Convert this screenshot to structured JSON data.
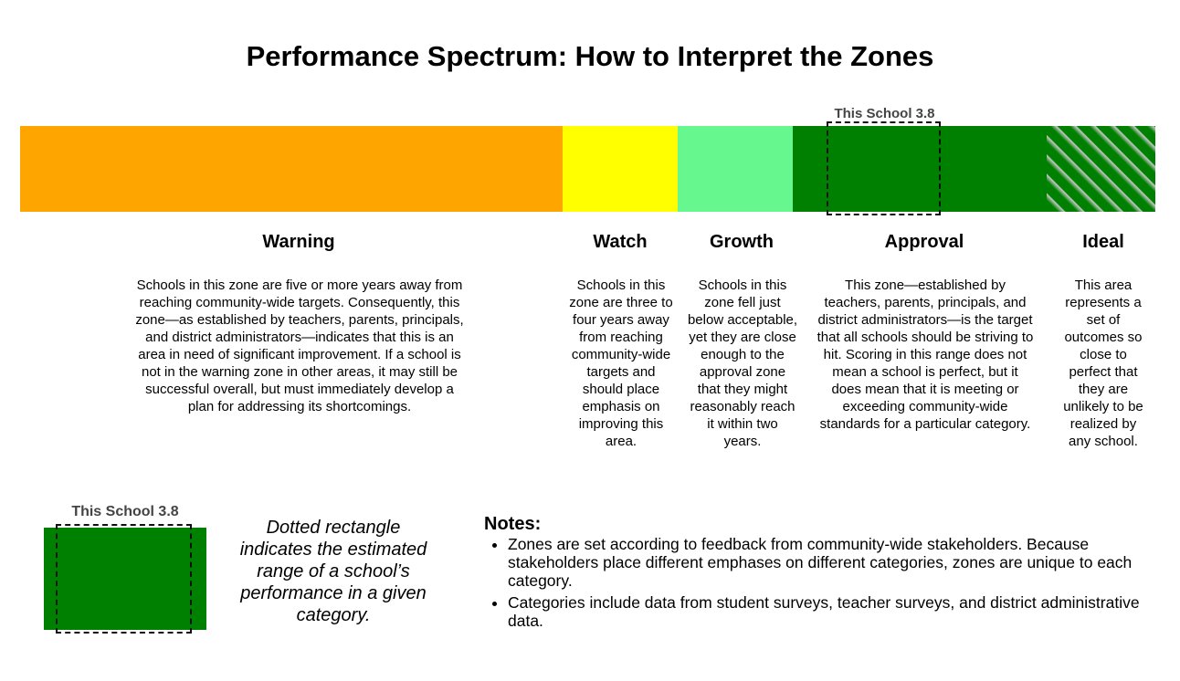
{
  "title": "Performance Spectrum: How to Interpret the Zones",
  "marker_label": "This School 3.8",
  "colors": {
    "warning": "#ffa500",
    "watch": "#ffff00",
    "growth": "#66f78e",
    "approval": "#008000",
    "ideal": "hatched green"
  },
  "zones": [
    {
      "name": "Warning",
      "description": "Schools in this zone are five or more years away from reaching community-wide targets. Consequently, this zone—as established by teachers, parents, principals, and district administrators—indicates that this is an area in need of significant improvement. If a school is not in the warning zone in other areas, it may still be successful overall, but must immediately develop a plan for addressing its shortcomings."
    },
    {
      "name": "Watch",
      "description": "Schools in this zone are three to four years away from reaching community-wide targets and should place emphasis on improving this area."
    },
    {
      "name": "Growth",
      "description": "Schools in this zone fell just below acceptable, yet they are close enough to the approval zone that they might reasonably reach it within two years."
    },
    {
      "name": "Approval",
      "description": "This zone—established by teachers, parents, principals, and district administrators—is the target that all schools should be striving to hit. Scoring in this range does not mean a school is perfect, but it does mean that it is meeting or exceeding community-wide standards for a particular category."
    },
    {
      "name": "Ideal",
      "description": "This area represents a set of outcomes so close to perfect that they are unlikely to be realized by any school."
    }
  ],
  "legend": {
    "label": "This School 3.8",
    "text": "Dotted rectangle indicates the estimated range of a school’s performance in a given category."
  },
  "notes": {
    "title": "Notes:",
    "items": [
      "Zones are set according to feedback from community-wide stakeholders. Because stakeholders place different emphases on different categories, zones are unique to each category.",
      "Categories include data from student surveys, teacher surveys, and district administrative data."
    ]
  }
}
